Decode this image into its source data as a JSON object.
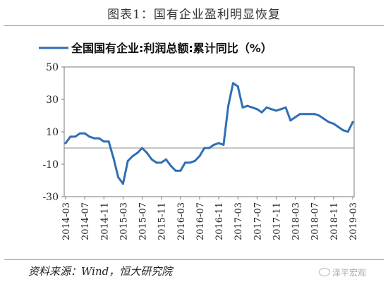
{
  "figure": {
    "title": "图表1：国有企业盈利明显恢复",
    "source": "资料来源：Wind，恒大研究院",
    "watermark": "泽平宏观",
    "watermark_icon": "wechat-icon"
  },
  "chart_data": {
    "type": "line",
    "title": "",
    "xlabel": "",
    "ylabel": "",
    "ylim": [
      -30,
      50
    ],
    "yticks": [
      50,
      30,
      10,
      -10,
      -30
    ],
    "grid": false,
    "legend_position": "top",
    "line_color": "#2f6fb5",
    "x": [
      "2014-03",
      "2014-04",
      "2014-05",
      "2014-06",
      "2014-07",
      "2014-08",
      "2014-09",
      "2014-10",
      "2014-11",
      "2014-12",
      "2015-01",
      "2015-02",
      "2015-03",
      "2015-04",
      "2015-05",
      "2015-06",
      "2015-07",
      "2015-08",
      "2015-09",
      "2015-10",
      "2015-11",
      "2015-12",
      "2016-01",
      "2016-02",
      "2016-03",
      "2016-04",
      "2016-05",
      "2016-06",
      "2016-07",
      "2016-08",
      "2016-09",
      "2016-10",
      "2016-11",
      "2016-12",
      "2017-01",
      "2017-02",
      "2017-03",
      "2017-04",
      "2017-05",
      "2017-06",
      "2017-07",
      "2017-08",
      "2017-09",
      "2017-10",
      "2017-11",
      "2017-12",
      "2018-01",
      "2018-02",
      "2018-03",
      "2018-04",
      "2018-05",
      "2018-06",
      "2018-07",
      "2018-08",
      "2018-09",
      "2018-10",
      "2018-11",
      "2018-12",
      "2019-01",
      "2019-02",
      "2019-03"
    ],
    "xticks": [
      "2014-03",
      "2014-07",
      "2014-11",
      "2015-03",
      "2015-07",
      "2015-11",
      "2016-03",
      "2016-07",
      "2016-11",
      "2017-03",
      "2017-07",
      "2017-11",
      "2018-03",
      "2018-07",
      "2018-11",
      "2019-03"
    ],
    "series": [
      {
        "name": "全国国有企业:利润总额:累计同比（%）",
        "values": [
          3,
          7,
          7,
          9,
          9,
          7,
          6,
          6,
          4,
          4,
          -6,
          -18,
          -22,
          -8,
          -5,
          -3,
          0,
          -3,
          -7,
          -9,
          -9,
          -7,
          -11,
          -14,
          -14,
          -9,
          -9,
          -8,
          -5,
          0,
          0,
          2,
          3,
          2,
          26,
          40,
          38,
          25,
          26,
          25,
          24,
          22,
          25,
          24,
          23,
          24,
          25,
          17,
          19,
          21,
          21,
          21,
          21,
          20,
          18,
          16,
          15,
          13,
          11,
          10,
          16
        ]
      }
    ]
  }
}
